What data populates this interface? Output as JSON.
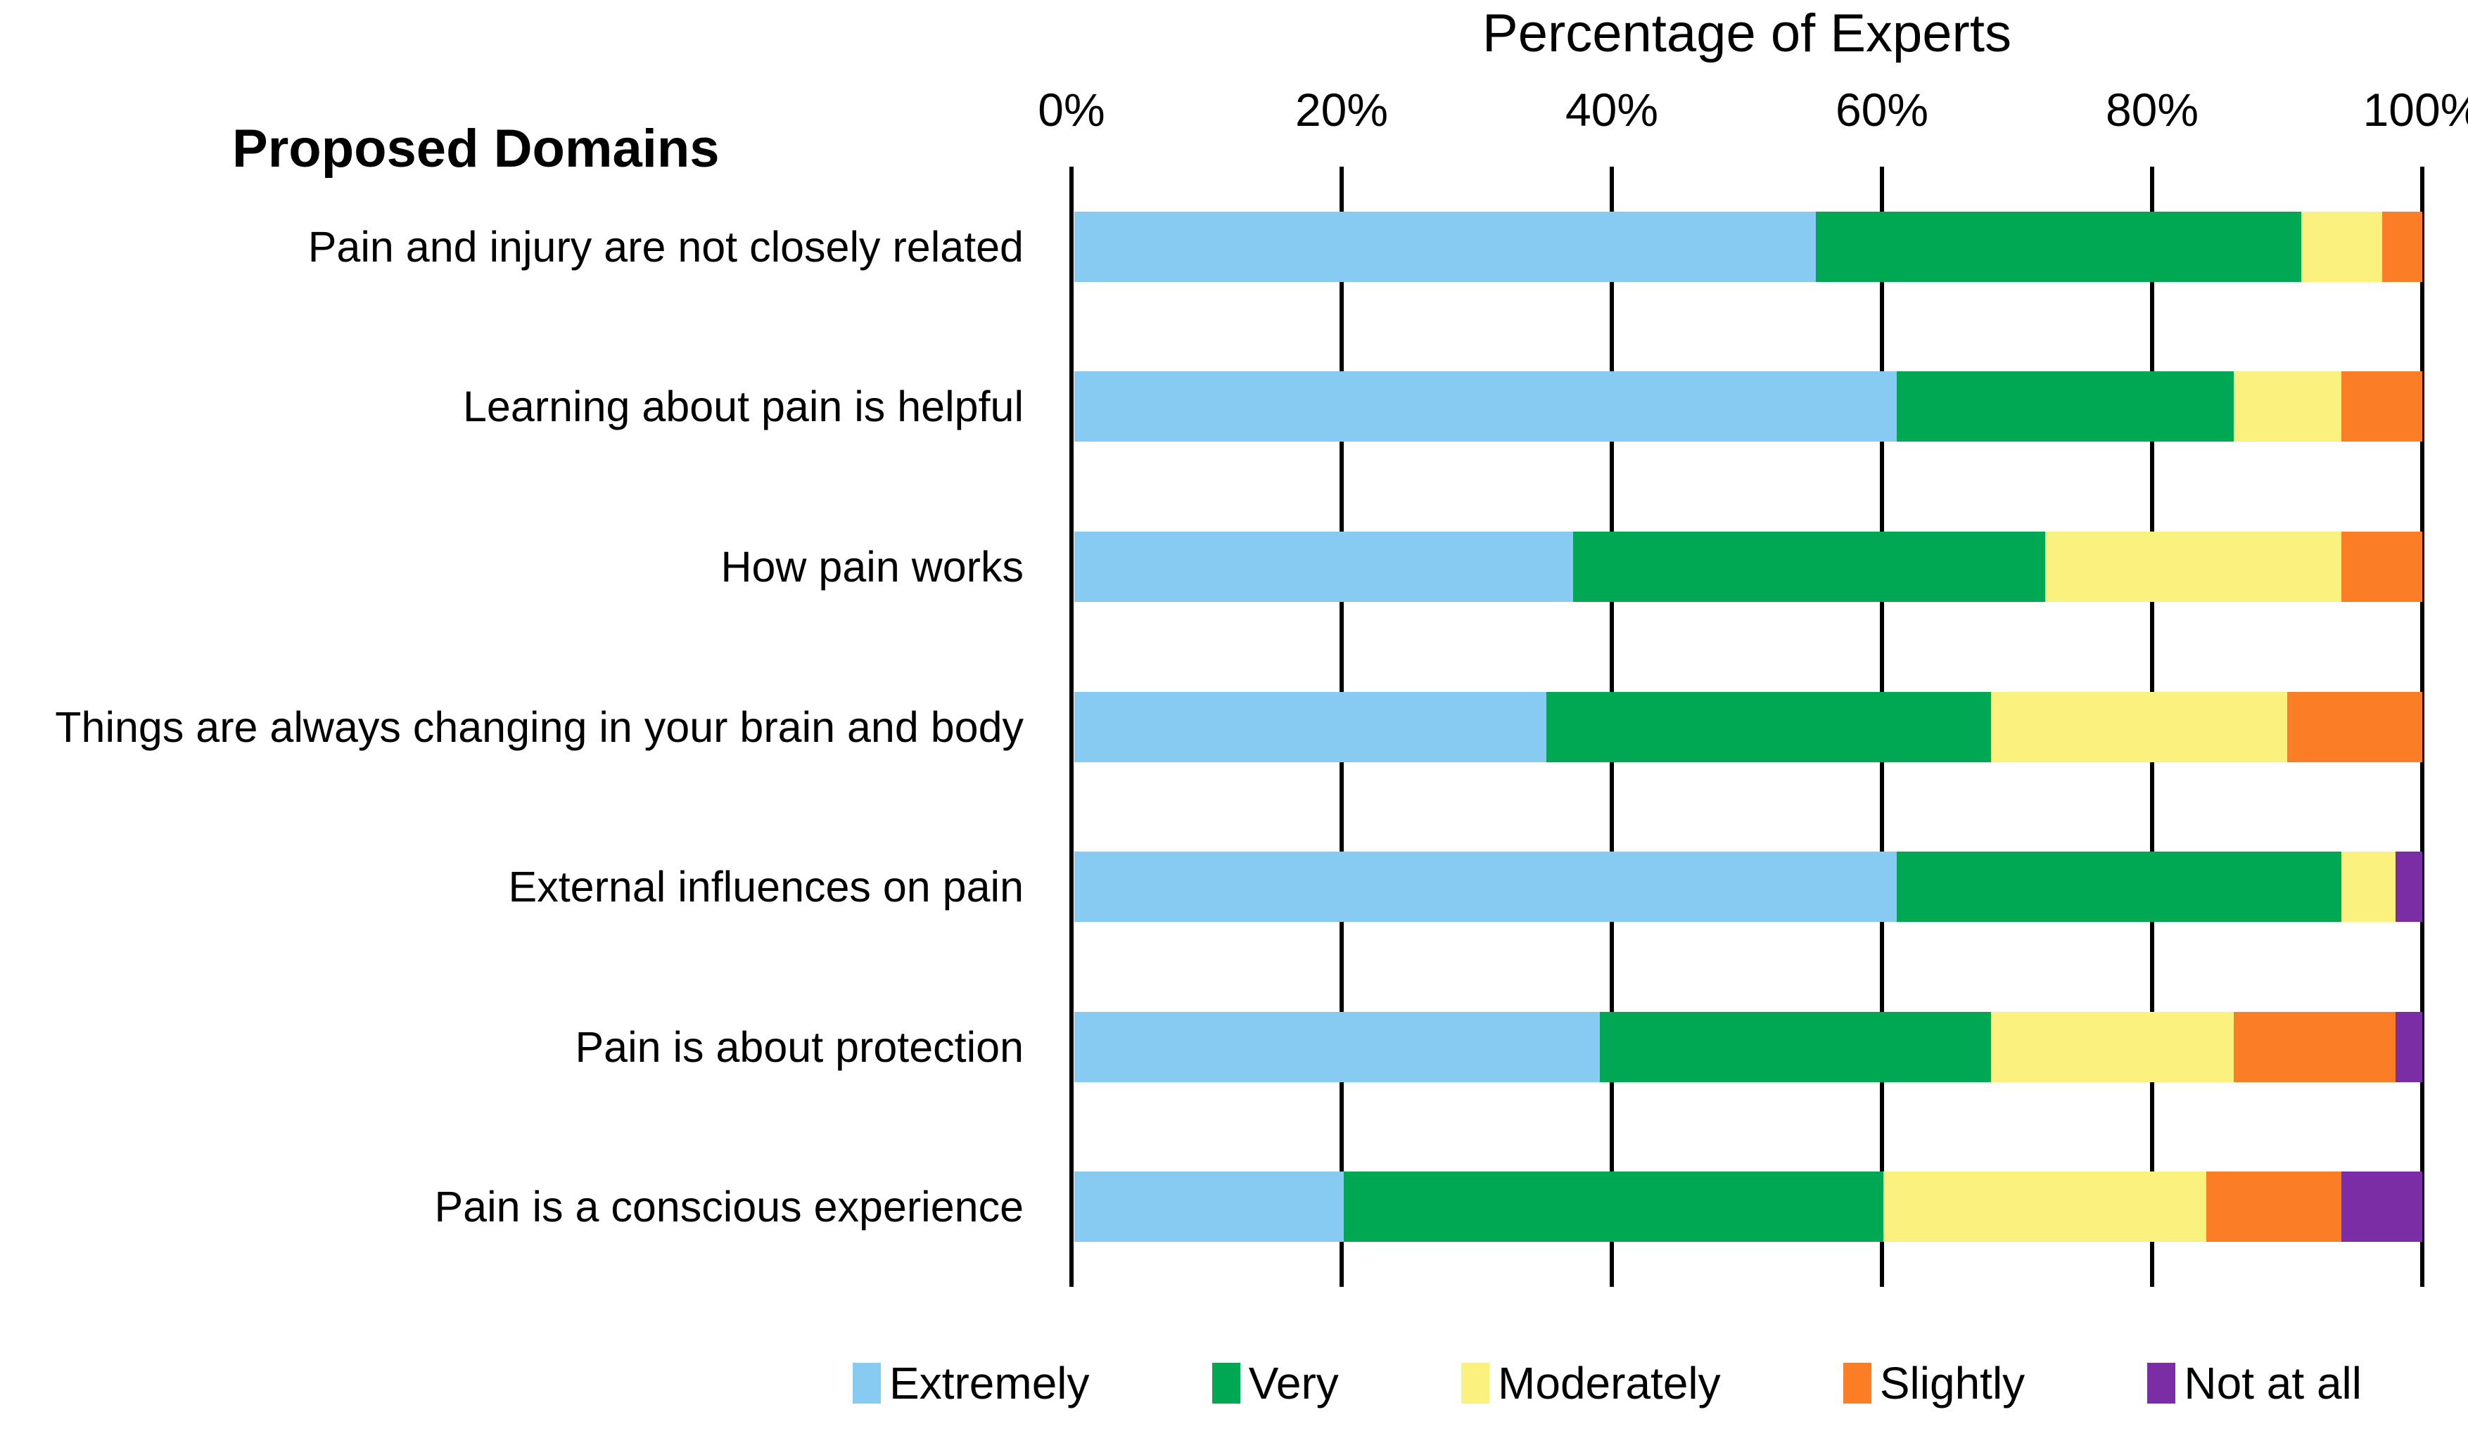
{
  "chart_data": {
    "type": "bar",
    "orientation": "horizontal-stacked",
    "title": "Percentage of Experts",
    "left_header": "Proposed Domains",
    "x_ticks": [
      "0%",
      "20%",
      "40%",
      "60%",
      "80%",
      "100%"
    ],
    "xlim": [
      0,
      100
    ],
    "grid": "vertical-lines",
    "legend_position": "bottom",
    "categories": [
      "Pain and injury are not closely related",
      "Learning about pain is helpful",
      "How pain works",
      "Things are always changing in your brain and body",
      "External influences on pain",
      "Pain is about protection",
      "Pain is a conscious experience"
    ],
    "series": [
      {
        "name": "Extremely",
        "color": "#87CBF3",
        "values": [
          55,
          61,
          37,
          35,
          61,
          39,
          20
        ]
      },
      {
        "name": "Very",
        "color": "#00A854",
        "values": [
          36,
          25,
          35,
          33,
          33,
          29,
          40
        ]
      },
      {
        "name": "Moderately",
        "color": "#FAF17E",
        "values": [
          6,
          8,
          22,
          22,
          4,
          18,
          24
        ]
      },
      {
        "name": "Slightly",
        "color": "#FB7D26",
        "values": [
          3,
          6,
          6,
          10,
          0,
          12,
          10
        ]
      },
      {
        "name": "Not at all",
        "color": "#7B2DA6",
        "values": [
          0,
          0,
          0,
          0,
          2,
          2,
          6
        ]
      }
    ],
    "gridline_color": "#000000",
    "background_color": "#FFFFFF"
  }
}
